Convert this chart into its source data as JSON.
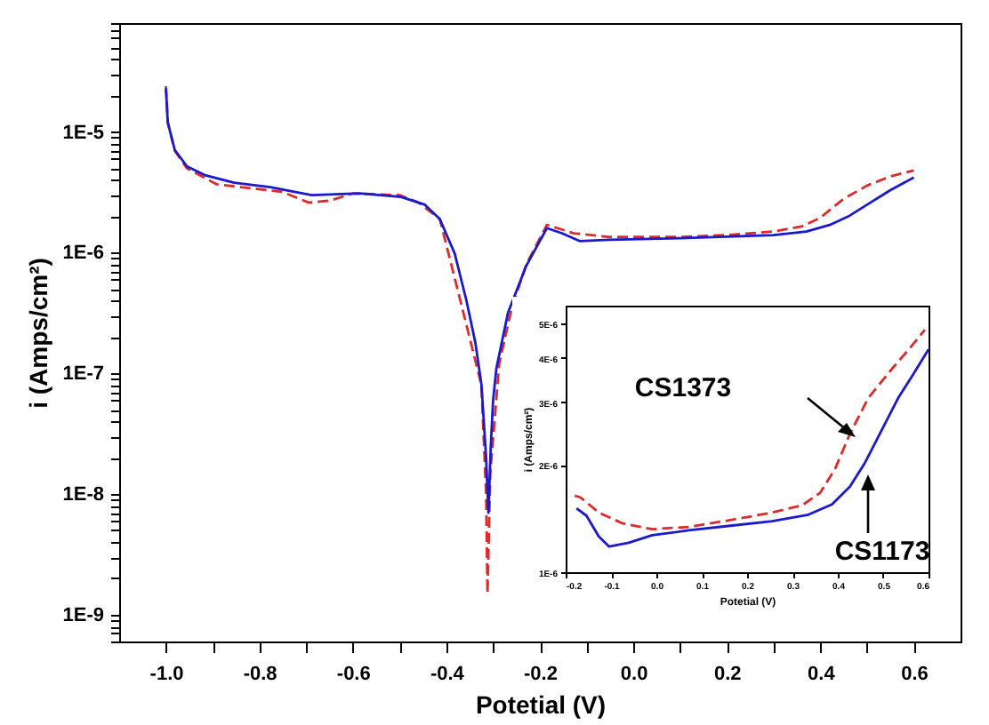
{
  "chart_data": [
    {
      "type": "line",
      "xlabel": "Potetial (V)",
      "ylabel": "i (Amps/cm²)",
      "log": "y",
      "grid": false,
      "marker": "none",
      "xlim": [
        -1.1,
        0.7
      ],
      "ylim": [
        6e-10,
        8e-05
      ],
      "xticks": [
        {
          "value": -1.0,
          "label": "-1.0"
        },
        {
          "value": -0.9,
          "label": null
        },
        {
          "value": -0.8,
          "label": "-0.8"
        },
        {
          "value": -0.7,
          "label": null
        },
        {
          "value": -0.6,
          "label": "-0.6"
        },
        {
          "value": -0.5,
          "label": null
        },
        {
          "value": -0.4,
          "label": "-0.4"
        },
        {
          "value": -0.3,
          "label": null
        },
        {
          "value": -0.2,
          "label": "-0.2"
        },
        {
          "value": -0.1,
          "label": null
        },
        {
          "value": 0,
          "label": "0.0"
        },
        {
          "value": 0.1,
          "label": null
        },
        {
          "value": 0.2,
          "label": "0.2"
        },
        {
          "value": 0.3,
          "label": null
        },
        {
          "value": 0.4,
          "label": "0.4"
        },
        {
          "value": 0.5,
          "label": null
        },
        {
          "value": 0.6,
          "label": "0.6"
        }
      ],
      "yticks": [
        {
          "value": 6e-10,
          "label": null
        },
        {
          "value": 7e-10,
          "label": null
        },
        {
          "value": 8e-10,
          "label": null
        },
        {
          "value": 9e-10,
          "label": null
        },
        {
          "value": 1e-09,
          "label": "1E-9"
        },
        {
          "value": 2e-09,
          "label": null
        },
        {
          "value": 3e-09,
          "label": null
        },
        {
          "value": 4e-09,
          "label": null
        },
        {
          "value": 5e-09,
          "label": null
        },
        {
          "value": 6e-09,
          "label": null
        },
        {
          "value": 7e-09,
          "label": null
        },
        {
          "value": 8e-09,
          "label": null
        },
        {
          "value": 9e-09,
          "label": null
        },
        {
          "value": 1e-08,
          "label": "1E-8"
        },
        {
          "value": 2e-08,
          "label": null
        },
        {
          "value": 3e-08,
          "label": null
        },
        {
          "value": 4e-08,
          "label": null
        },
        {
          "value": 5e-08,
          "label": null
        },
        {
          "value": 6e-08,
          "label": null
        },
        {
          "value": 7e-08,
          "label": null
        },
        {
          "value": 8e-08,
          "label": null
        },
        {
          "value": 9e-08,
          "label": null
        },
        {
          "value": 1e-07,
          "label": "1E-7"
        },
        {
          "value": 2e-07,
          "label": null
        },
        {
          "value": 3e-07,
          "label": null
        },
        {
          "value": 4e-07,
          "label": null
        },
        {
          "value": 5e-07,
          "label": null
        },
        {
          "value": 6e-07,
          "label": null
        },
        {
          "value": 7e-07,
          "label": null
        },
        {
          "value": 8e-07,
          "label": null
        },
        {
          "value": 9e-07,
          "label": null
        },
        {
          "value": 1e-06,
          "label": "1E-6"
        },
        {
          "value": 2e-06,
          "label": null
        },
        {
          "value": 3e-06,
          "label": null
        },
        {
          "value": 4e-06,
          "label": null
        },
        {
          "value": 5e-06,
          "label": null
        },
        {
          "value": 6e-06,
          "label": null
        },
        {
          "value": 7e-06,
          "label": null
        },
        {
          "value": 8e-06,
          "label": null
        },
        {
          "value": 9e-06,
          "label": null
        },
        {
          "value": 1e-05,
          "label": "1E-5"
        },
        {
          "value": 2e-05,
          "label": null
        },
        {
          "value": 3e-05,
          "label": null
        },
        {
          "value": 4e-05,
          "label": null
        },
        {
          "value": 5e-05,
          "label": null
        },
        {
          "value": 6e-05,
          "label": null
        },
        {
          "value": 7e-05,
          "label": null
        },
        {
          "value": 8e-05,
          "label": null
        }
      ],
      "series": [
        {
          "color": "#dd2a2a",
          "line_style": "dashed",
          "x": [
            -1.0,
            -0.996,
            -0.981,
            -0.955,
            -0.892,
            -0.84,
            -0.752,
            -0.694,
            -0.65,
            -0.6,
            -0.5,
            -0.459,
            -0.414,
            -0.37,
            -0.325,
            -0.315,
            -0.312,
            -0.306,
            -0.287,
            -0.26,
            -0.229,
            -0.185,
            -0.127,
            -0.051,
            0.1,
            0.2,
            0.3,
            0.36,
            0.4,
            0.45,
            0.5,
            0.55,
            0.6
          ],
          "values": [
            2.4e-05,
            1.2e-05,
            7e-06,
            5e-06,
            3.7e-06,
            3.5e-06,
            3.2e-06,
            2.6e-06,
            2.7e-06,
            3.1e-06,
            3e-06,
            2.6e-06,
            1.9e-06,
            4e-07,
            8e-08,
            1e-08,
            1.5e-09,
            1.5e-08,
            1.2e-07,
            3.5e-07,
            8e-07,
            1.7e-06,
            1.45e-06,
            1.35e-06,
            1.35e-06,
            1.4e-06,
            1.5e-06,
            1.65e-06,
            1.95e-06,
            2.8e-06,
            3.6e-06,
            4.3e-06,
            4.8e-06
          ]
        },
        {
          "color": "#1a1acc",
          "line_style": "solid",
          "x": [
            -1.0,
            -0.996,
            -0.981,
            -0.955,
            -0.917,
            -0.854,
            -0.777,
            -0.688,
            -0.586,
            -0.497,
            -0.446,
            -0.414,
            -0.382,
            -0.357,
            -0.338,
            -0.325,
            -0.315,
            -0.31,
            -0.305,
            -0.3,
            -0.293,
            -0.268,
            -0.229,
            -0.185,
            -0.153,
            -0.115,
            -0.05,
            0.1,
            0.2,
            0.3,
            0.37,
            0.42,
            0.46,
            0.5,
            0.55,
            0.6
          ],
          "values": [
            2.3e-05,
            1.2e-05,
            7.1e-06,
            5.2e-06,
            4.4e-06,
            3.8e-06,
            3.5e-06,
            3e-06,
            3.1e-06,
            2.9e-06,
            2.5e-06,
            1.9e-06,
            9.8e-07,
            4e-07,
            1.8e-07,
            8.1e-08,
            2e-08,
            7e-09,
            2.5e-08,
            6e-08,
            1.1e-07,
            3.2e-07,
            7.8e-07,
            1.6e-06,
            1.45e-06,
            1.25e-06,
            1.28e-06,
            1.32e-06,
            1.36e-06,
            1.4e-06,
            1.5e-06,
            1.7e-06,
            2e-06,
            2.5e-06,
            3.3e-06,
            4.2e-06
          ]
        }
      ]
    },
    {
      "type": "line",
      "xlabel": "Potetial (V)",
      "ylabel": "i (Amps/cm²)",
      "log": "y",
      "grid": false,
      "marker": "none",
      "annotations": [
        "CS1373",
        "CS1173"
      ],
      "xlim": [
        -0.2,
        0.6
      ],
      "ylim": [
        1e-06,
        5.6e-06
      ],
      "xticks": [
        {
          "value": -0.2,
          "label": "-0.2"
        },
        {
          "value": -0.1,
          "label": "-0.1"
        },
        {
          "value": 0,
          "label": "0.0"
        },
        0.1,
        0.2,
        0.3,
        0.4,
        0.5,
        0.6
      ],
      "yticks": [
        {
          "value": 1e-06,
          "label": "1E-6"
        },
        {
          "value": 2e-06,
          "label": "2E-6"
        },
        {
          "value": 3e-06,
          "label": "3E-6"
        },
        {
          "value": 4e-06,
          "label": "4E-6"
        },
        {
          "value": 5e-06,
          "label": "5E-6"
        }
      ],
      "series": [
        {
          "color": "#dd2a2a",
          "line_style": "dashed",
          "x": [
            -0.18,
            -0.167,
            -0.127,
            -0.074,
            -0.009,
            0.071,
            0.163,
            0.255,
            0.321,
            0.361,
            0.394,
            0.427,
            0.467,
            0.52,
            0.56,
            0.592
          ],
          "values": [
            1.64e-06,
            1.62e-06,
            1.47e-06,
            1.37e-06,
            1.32e-06,
            1.34e-06,
            1.4e-06,
            1.47e-06,
            1.54e-06,
            1.67e-06,
            1.95e-06,
            2.45e-06,
            3.08e-06,
            3.73e-06,
            4.27e-06,
            4.79e-06
          ]
        },
        {
          "color": "#1a1acc",
          "line_style": "solid",
          "x": [
            -0.176,
            -0.154,
            -0.127,
            -0.104,
            -0.061,
            -0.009,
            0.071,
            0.163,
            0.255,
            0.335,
            0.387,
            0.427,
            0.46,
            0.493,
            0.533,
            0.566,
            0.6
          ],
          "values": [
            1.51e-06,
            1.44e-06,
            1.26e-06,
            1.18e-06,
            1.21e-06,
            1.27e-06,
            1.31e-06,
            1.35e-06,
            1.39e-06,
            1.45e-06,
            1.55e-06,
            1.74e-06,
            2.03e-06,
            2.45e-06,
            3.08e-06,
            3.59e-06,
            4.22e-06
          ]
        }
      ]
    }
  ]
}
